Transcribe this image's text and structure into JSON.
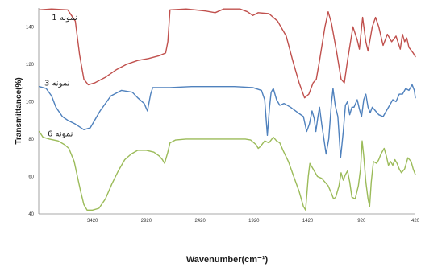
{
  "chart_data": {
    "type": "line",
    "title": "",
    "xlabel": "Wavenumber(cm⁻¹)",
    "ylabel": "Transmittance(%)",
    "xlim": [
      3920,
      420
    ],
    "ylim": [
      40,
      150
    ],
    "x_reversed": true,
    "x_ticks": [
      3420,
      2920,
      2420,
      1920,
      1420,
      920,
      420
    ],
    "y_ticks": [
      40,
      60,
      80,
      100,
      120,
      140
    ],
    "grid": false,
    "series": [
      {
        "name": "نمونه 1",
        "color": "#c0504d",
        "label_at": [
          3680,
          143.5
        ],
        "points": [
          [
            3915,
            149
          ],
          [
            3800,
            149.5
          ],
          [
            3650,
            149
          ],
          [
            3580,
            143
          ],
          [
            3540,
            125
          ],
          [
            3500,
            112
          ],
          [
            3460,
            109
          ],
          [
            3400,
            110
          ],
          [
            3300,
            113
          ],
          [
            3200,
            117
          ],
          [
            3100,
            120
          ],
          [
            3000,
            122
          ],
          [
            2900,
            123
          ],
          [
            2800,
            124.5
          ],
          [
            2740,
            126
          ],
          [
            2720,
            132
          ],
          [
            2700,
            149
          ],
          [
            2550,
            149.5
          ],
          [
            2380,
            148.5
          ],
          [
            2280,
            147.5
          ],
          [
            2200,
            149.5
          ],
          [
            2050,
            149.5
          ],
          [
            1980,
            148
          ],
          [
            1930,
            146
          ],
          [
            1880,
            147.5
          ],
          [
            1780,
            147
          ],
          [
            1700,
            143
          ],
          [
            1620,
            135
          ],
          [
            1560,
            122
          ],
          [
            1500,
            110
          ],
          [
            1450,
            102
          ],
          [
            1410,
            104
          ],
          [
            1370,
            110
          ],
          [
            1340,
            112
          ],
          [
            1310,
            122
          ],
          [
            1260,
            140
          ],
          [
            1230,
            148
          ],
          [
            1200,
            142
          ],
          [
            1150,
            126
          ],
          [
            1110,
            112
          ],
          [
            1080,
            110
          ],
          [
            1050,
            122
          ],
          [
            1000,
            140
          ],
          [
            960,
            133
          ],
          [
            940,
            128
          ],
          [
            910,
            145
          ],
          [
            880,
            132
          ],
          [
            860,
            127
          ],
          [
            820,
            140
          ],
          [
            790,
            145
          ],
          [
            760,
            140
          ],
          [
            720,
            130
          ],
          [
            680,
            136
          ],
          [
            640,
            132
          ],
          [
            600,
            135
          ],
          [
            560,
            128
          ],
          [
            540,
            136
          ],
          [
            520,
            132
          ],
          [
            500,
            134
          ],
          [
            480,
            129
          ],
          [
            440,
            126
          ],
          [
            420,
            124
          ]
        ]
      },
      {
        "name": "نمونه 3",
        "color": "#4f81bd",
        "label_at": [
          3750,
          108.5
        ],
        "points": [
          [
            3915,
            108
          ],
          [
            3850,
            107
          ],
          [
            3800,
            103
          ],
          [
            3760,
            97
          ],
          [
            3700,
            92
          ],
          [
            3650,
            90
          ],
          [
            3580,
            88
          ],
          [
            3500,
            85
          ],
          [
            3440,
            86
          ],
          [
            3350,
            95
          ],
          [
            3250,
            103
          ],
          [
            3150,
            106
          ],
          [
            3050,
            105
          ],
          [
            3000,
            102
          ],
          [
            2940,
            99
          ],
          [
            2910,
            95
          ],
          [
            2880,
            104
          ],
          [
            2860,
            107.5
          ],
          [
            2700,
            107.5
          ],
          [
            2500,
            108
          ],
          [
            2300,
            108
          ],
          [
            2100,
            108
          ],
          [
            1930,
            107.5
          ],
          [
            1850,
            106
          ],
          [
            1820,
            101
          ],
          [
            1795,
            82
          ],
          [
            1775,
            97
          ],
          [
            1760,
            105
          ],
          [
            1740,
            107
          ],
          [
            1710,
            101
          ],
          [
            1680,
            98
          ],
          [
            1640,
            99
          ],
          [
            1580,
            97
          ],
          [
            1510,
            94
          ],
          [
            1460,
            92
          ],
          [
            1430,
            84
          ],
          [
            1405,
            88
          ],
          [
            1380,
            95
          ],
          [
            1360,
            91
          ],
          [
            1345,
            84
          ],
          [
            1325,
            92
          ],
          [
            1310,
            97
          ],
          [
            1290,
            88
          ],
          [
            1250,
            72
          ],
          [
            1225,
            80
          ],
          [
            1200,
            99
          ],
          [
            1185,
            107
          ],
          [
            1165,
            98
          ],
          [
            1140,
            92
          ],
          [
            1115,
            70
          ],
          [
            1090,
            84
          ],
          [
            1070,
            98
          ],
          [
            1050,
            100
          ],
          [
            1030,
            93
          ],
          [
            1010,
            97
          ],
          [
            990,
            97
          ],
          [
            960,
            101
          ],
          [
            940,
            96
          ],
          [
            920,
            92
          ],
          [
            900,
            101
          ],
          [
            880,
            104
          ],
          [
            860,
            97
          ],
          [
            840,
            94
          ],
          [
            820,
            97
          ],
          [
            790,
            95
          ],
          [
            760,
            93
          ],
          [
            720,
            92
          ],
          [
            690,
            95
          ],
          [
            660,
            98
          ],
          [
            630,
            101
          ],
          [
            600,
            100
          ],
          [
            570,
            104
          ],
          [
            540,
            104
          ],
          [
            510,
            107
          ],
          [
            480,
            106
          ],
          [
            450,
            109
          ],
          [
            430,
            106
          ],
          [
            420,
            102
          ]
        ]
      },
      {
        "name": "نمونه 6",
        "color": "#9bbb59",
        "label_at": [
          3720,
          81.5
        ],
        "points": [
          [
            3915,
            84
          ],
          [
            3880,
            81
          ],
          [
            3820,
            80
          ],
          [
            3740,
            79
          ],
          [
            3680,
            77
          ],
          [
            3640,
            75
          ],
          [
            3590,
            68
          ],
          [
            3560,
            60
          ],
          [
            3530,
            52
          ],
          [
            3500,
            45
          ],
          [
            3470,
            42
          ],
          [
            3420,
            42
          ],
          [
            3360,
            43
          ],
          [
            3300,
            48
          ],
          [
            3240,
            56
          ],
          [
            3180,
            63
          ],
          [
            3120,
            69
          ],
          [
            3060,
            72
          ],
          [
            3000,
            74
          ],
          [
            2920,
            74
          ],
          [
            2850,
            73
          ],
          [
            2800,
            71
          ],
          [
            2770,
            69
          ],
          [
            2750,
            67
          ],
          [
            2720,
            73
          ],
          [
            2700,
            78
          ],
          [
            2650,
            79.5
          ],
          [
            2550,
            80
          ],
          [
            2400,
            80
          ],
          [
            2200,
            80
          ],
          [
            2000,
            80
          ],
          [
            1950,
            79.5
          ],
          [
            1900,
            77
          ],
          [
            1880,
            75
          ],
          [
            1860,
            76
          ],
          [
            1820,
            79
          ],
          [
            1780,
            78
          ],
          [
            1740,
            81
          ],
          [
            1710,
            79
          ],
          [
            1680,
            78
          ],
          [
            1650,
            74
          ],
          [
            1600,
            68
          ],
          [
            1550,
            60
          ],
          [
            1500,
            52
          ],
          [
            1460,
            44
          ],
          [
            1440,
            42
          ],
          [
            1415,
            60
          ],
          [
            1400,
            67
          ],
          [
            1370,
            64
          ],
          [
            1330,
            60
          ],
          [
            1290,
            59
          ],
          [
            1260,
            57
          ],
          [
            1230,
            55
          ],
          [
            1200,
            51
          ],
          [
            1180,
            48
          ],
          [
            1160,
            49
          ],
          [
            1130,
            55
          ],
          [
            1110,
            62
          ],
          [
            1090,
            58
          ],
          [
            1070,
            61
          ],
          [
            1050,
            63
          ],
          [
            1030,
            57
          ],
          [
            1010,
            49
          ],
          [
            980,
            48
          ],
          [
            950,
            55
          ],
          [
            930,
            64
          ],
          [
            915,
            79
          ],
          [
            900,
            71
          ],
          [
            880,
            57
          ],
          [
            860,
            48
          ],
          [
            845,
            44
          ],
          [
            830,
            57
          ],
          [
            810,
            68
          ],
          [
            780,
            67
          ],
          [
            760,
            69
          ],
          [
            740,
            72
          ],
          [
            710,
            75
          ],
          [
            690,
            71
          ],
          [
            670,
            66
          ],
          [
            650,
            68
          ],
          [
            630,
            66
          ],
          [
            610,
            69
          ],
          [
            590,
            67
          ],
          [
            570,
            64
          ],
          [
            550,
            62
          ],
          [
            520,
            64
          ],
          [
            490,
            70
          ],
          [
            460,
            68
          ],
          [
            440,
            64
          ],
          [
            420,
            61
          ]
        ]
      }
    ]
  }
}
